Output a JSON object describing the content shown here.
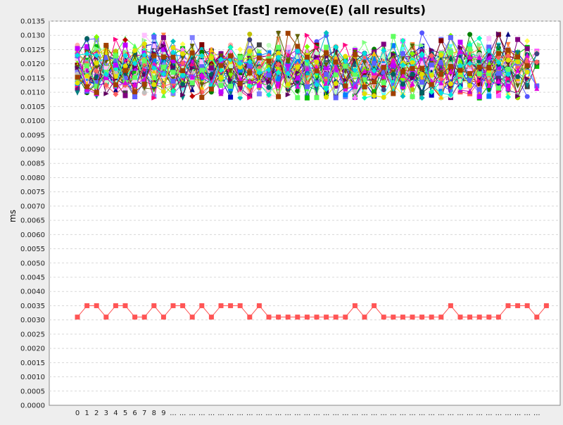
{
  "chart_data": {
    "type": "line",
    "title": "HugeHashSet [fast] remove(E) (all results)",
    "xlabel": "",
    "ylabel": "ms",
    "ylim": [
      0,
      0.0135
    ],
    "ytick_step": 0.0005,
    "grid": true,
    "x_tick_labels": [
      "0",
      "1",
      "2",
      "3",
      "4",
      "5",
      "6",
      "7",
      "8",
      "9",
      "...",
      "...",
      "...",
      "...",
      "...",
      "...",
      "...",
      "...",
      "...",
      "...",
      "...",
      "...",
      "...",
      "...",
      "...",
      "...",
      "...",
      "...",
      "...",
      "...",
      "...",
      "...",
      "...",
      "...",
      "...",
      "...",
      "...",
      "...",
      "...",
      "...",
      "...",
      "...",
      "...",
      "...",
      "...",
      "...",
      "...",
      "...",
      "..."
    ],
    "highlight_series": {
      "color": "#ff5555",
      "marker": "square",
      "values": [
        0.0031,
        0.0035,
        0.0035,
        0.0031,
        0.0035,
        0.0035,
        0.0031,
        0.0031,
        0.0035,
        0.0031,
        0.0035,
        0.0035,
        0.0031,
        0.0035,
        0.0031,
        0.0035,
        0.0035,
        0.0035,
        0.0031,
        0.0035,
        0.0031,
        0.0031,
        0.0031,
        0.0031,
        0.0031,
        0.0031,
        0.0031,
        0.0031,
        0.0031,
        0.0035,
        0.0031,
        0.0035,
        0.0031,
        0.0031,
        0.0031,
        0.0031,
        0.0031,
        0.0031,
        0.0031,
        0.0035,
        0.0031,
        0.0031,
        0.0031,
        0.0031,
        0.0031,
        0.0035,
        0.0035,
        0.0035,
        0.0031,
        0.0035
      ]
    },
    "cluster_series": {
      "description_range": [
        0.0108,
        0.0131
      ],
      "count": 45,
      "colors": [
        "#ff5555",
        "#5555ff",
        "#55ff55",
        "#ffff55",
        "#ff55ff",
        "#55ffff",
        "#ffafaf",
        "#808080",
        "#c00000",
        "#0000c0",
        "#00c000",
        "#c0c000",
        "#c000c0",
        "#00c0c0",
        "#404040",
        "#ff8040",
        "#404080",
        "#80ff80",
        "#ff80ff",
        "#8080ff",
        "#800000",
        "#008000",
        "#000080",
        "#808000",
        "#800080",
        "#008080",
        "#c0c0c0",
        "#ff0080",
        "#80ff00",
        "#0080ff",
        "#ffc0ff",
        "#c0ffc0",
        "#ffc000",
        "#00ffc0",
        "#c000ff",
        "#606000",
        "#006060",
        "#600060",
        "#ff6060",
        "#6060ff",
        "#60ff60",
        "#e0e000",
        "#e000e0",
        "#00e0e0",
        "#a04000"
      ],
      "markers": [
        "square",
        "circle",
        "triangle-up",
        "diamond",
        "square",
        "triangle-down",
        "circle",
        "triangle-right",
        "diamond",
        "square"
      ]
    }
  }
}
